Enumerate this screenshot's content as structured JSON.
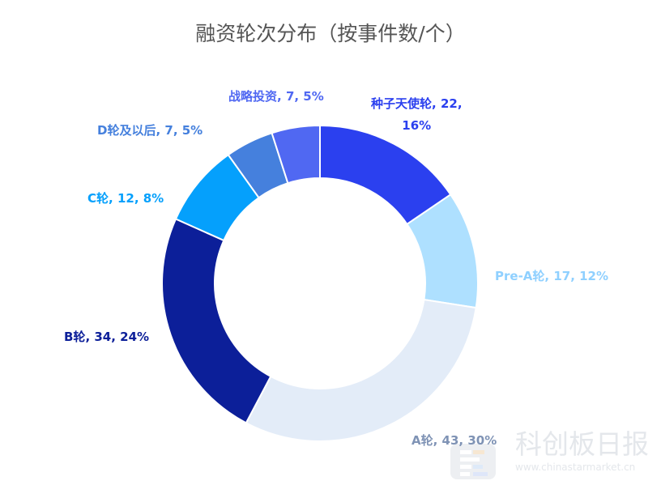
{
  "chart_data": {
    "type": "pie",
    "donut": true,
    "title": "融资轮次分布（按事件数/个）",
    "categories": [
      "种子天使轮",
      "Pre-A轮",
      "A轮",
      "B轮",
      "C轮",
      "D轮及以后",
      "战略投资"
    ],
    "values": [
      22,
      17,
      43,
      34,
      12,
      7,
      7
    ],
    "percents": [
      "16%",
      "12%",
      "30%",
      "24%",
      "8%",
      "5%",
      "5%"
    ],
    "colors": [
      "#2b40ef",
      "#aee0ff",
      "#e3ecf8",
      "#0c1f99",
      "#05a0fc",
      "#4580dd",
      "#5068f2"
    ],
    "label_colors": [
      "#2b40ef",
      "#8fd0ff",
      "#7f93b5",
      "#0c1f99",
      "#05a0fc",
      "#4580dd",
      "#5068f2"
    ]
  },
  "watermark": {
    "name": "科创板日报",
    "url": "www.chinastarmarket.cn"
  }
}
